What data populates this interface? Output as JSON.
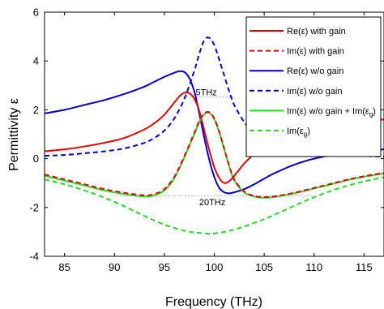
{
  "chart_data": {
    "type": "line",
    "xlabel": "Frequency (THz)",
    "ylabel": "Permittivity  ε",
    "xlim": [
      83,
      117
    ],
    "ylim": [
      -4,
      6
    ],
    "xticks": [
      85,
      90,
      95,
      100,
      105,
      110,
      115
    ],
    "yticks": [
      -4,
      -2,
      0,
      2,
      4,
      6
    ],
    "grid": false,
    "legend_position": "top-right",
    "annotations": [
      {
        "text": "5THz",
        "x": 99.2,
        "y": 2.6
      },
      {
        "text": "20THz",
        "x": 99.8,
        "y": -1.9
      }
    ],
    "reference_lines": [
      {
        "x": [
          96.9,
          101.9
        ],
        "y": 2.52,
        "style": "dotted",
        "color": "#999999"
      },
      {
        "x": [
          89.9,
          109.9
        ],
        "y": -1.52,
        "style": "dotted",
        "color": "#999999"
      }
    ],
    "series": [
      {
        "name": "Re(ε) with gain",
        "color": "#e60000",
        "dash": "solid",
        "x": [
          83,
          85,
          87,
          89,
          91,
          93,
          94,
          95,
          96,
          96.5,
          97,
          97.5,
          98,
          98.5,
          99,
          99.5,
          100,
          100.5,
          101,
          101.5,
          102,
          102.5,
          103,
          104,
          105,
          106,
          108,
          110,
          112,
          114,
          117
        ],
        "y": [
          0.3,
          0.38,
          0.5,
          0.65,
          0.85,
          1.2,
          1.45,
          1.8,
          2.3,
          2.55,
          2.7,
          2.68,
          2.45,
          1.95,
          1.15,
          0.35,
          -0.35,
          -0.8,
          -1.0,
          -0.92,
          -0.7,
          -0.45,
          -0.2,
          0.2,
          0.55,
          0.85,
          1.2,
          1.42,
          1.53,
          1.58,
          1.6
        ]
      },
      {
        "name": "Im(ε) with gain",
        "color": "#e60000",
        "dash": "dashed",
        "x": [
          83,
          85,
          87,
          89,
          91,
          93,
          94,
          95,
          96,
          97,
          98,
          98.5,
          99,
          99.5,
          100,
          100.5,
          101,
          101.5,
          102,
          103,
          104,
          105,
          106,
          108,
          110,
          112,
          114,
          117
        ],
        "y": [
          -0.65,
          -0.85,
          -1.05,
          -1.25,
          -1.4,
          -1.5,
          -1.45,
          -1.25,
          -0.75,
          0.1,
          1.05,
          1.55,
          1.85,
          1.9,
          1.65,
          1.1,
          0.4,
          -0.3,
          -0.85,
          -1.35,
          -1.53,
          -1.58,
          -1.55,
          -1.4,
          -1.2,
          -1.0,
          -0.8,
          -0.58
        ]
      },
      {
        "name": "Re(ε) w/o gain",
        "color": "#0000cc",
        "dash": "solid",
        "x": [
          83,
          85,
          87,
          89,
          91,
          93,
          94,
          95,
          96,
          96.5,
          97,
          97.5,
          98,
          98.5,
          99,
          99.5,
          100,
          100.5,
          101,
          101.5,
          102,
          103,
          104,
          105,
          106,
          108,
          110,
          112,
          114,
          117
        ],
        "y": [
          1.85,
          2.0,
          2.2,
          2.4,
          2.65,
          2.95,
          3.15,
          3.35,
          3.52,
          3.58,
          3.55,
          3.3,
          2.75,
          1.85,
          0.85,
          -0.05,
          -0.75,
          -1.2,
          -1.38,
          -1.42,
          -1.38,
          -1.25,
          -1.05,
          -0.82,
          -0.6,
          -0.25,
          0.0,
          0.15,
          0.25,
          0.38
        ]
      },
      {
        "name": "Im(ε) w/o gain",
        "color": "#0000cc",
        "dash": "dashed",
        "x": [
          83,
          85,
          87,
          89,
          91,
          93,
          94,
          95,
          96,
          97,
          98,
          98.5,
          99,
          99.5,
          100,
          100.5,
          101,
          101.5,
          102,
          103,
          104,
          105,
          106,
          108,
          110,
          112,
          114,
          117
        ],
        "y": [
          0.12,
          0.15,
          0.22,
          0.3,
          0.42,
          0.65,
          0.85,
          1.15,
          1.65,
          2.45,
          3.6,
          4.3,
          4.85,
          4.95,
          4.65,
          4.05,
          3.4,
          2.75,
          2.2,
          1.5,
          1.05,
          0.8,
          0.6,
          0.38,
          0.24,
          0.16,
          0.12,
          0.08
        ]
      },
      {
        "name": "Im(ε) w/o gain + Im(εg)",
        "color": "#22dd22",
        "dash": "solid",
        "x": [
          83,
          85,
          87,
          89,
          91,
          93,
          94,
          95,
          96,
          97,
          98,
          98.5,
          99,
          99.5,
          100,
          100.5,
          101,
          101.5,
          102,
          103,
          104,
          105,
          106,
          108,
          110,
          112,
          114,
          117
        ],
        "y": [
          -0.7,
          -0.9,
          -1.1,
          -1.3,
          -1.45,
          -1.55,
          -1.5,
          -1.3,
          -0.8,
          0.05,
          1.0,
          1.5,
          1.82,
          1.88,
          1.62,
          1.08,
          0.38,
          -0.32,
          -0.88,
          -1.38,
          -1.55,
          -1.6,
          -1.57,
          -1.42,
          -1.22,
          -1.02,
          -0.82,
          -0.6
        ]
      },
      {
        "name": "Im(εg)",
        "color": "#22dd22",
        "dash": "dashed",
        "x": [
          83,
          85,
          87,
          89,
          91,
          93,
          95,
          97,
          98,
          99,
          99.5,
          100,
          101,
          102,
          103,
          105,
          107,
          109,
          111,
          113,
          115,
          117
        ],
        "y": [
          -0.85,
          -1.05,
          -1.3,
          -1.6,
          -1.95,
          -2.35,
          -2.7,
          -2.95,
          -3.02,
          -3.06,
          -3.07,
          -3.06,
          -3.0,
          -2.9,
          -2.78,
          -2.48,
          -2.12,
          -1.75,
          -1.42,
          -1.15,
          -0.93,
          -0.76
        ]
      }
    ]
  },
  "legend": {
    "entries": [
      {
        "label": "Re(ε) with gain",
        "color": "#e60000",
        "dash": "solid"
      },
      {
        "label": "Im(ε) with gain",
        "color": "#e60000",
        "dash": "dashed"
      },
      {
        "label": "Re(ε) w/o gain",
        "color": "#0000cc",
        "dash": "solid"
      },
      {
        "label": "Im(ε) w/o gain",
        "color": "#0000cc",
        "dash": "dashed"
      },
      {
        "label": "Im(ε) w/o gain + Im(ε",
        "sub": "g",
        "suffix": ")",
        "color": "#22dd22",
        "dash": "solid"
      },
      {
        "label": "Im(ε",
        "sub": "g",
        "suffix": ")",
        "color": "#22dd22",
        "dash": "dashed"
      }
    ]
  }
}
